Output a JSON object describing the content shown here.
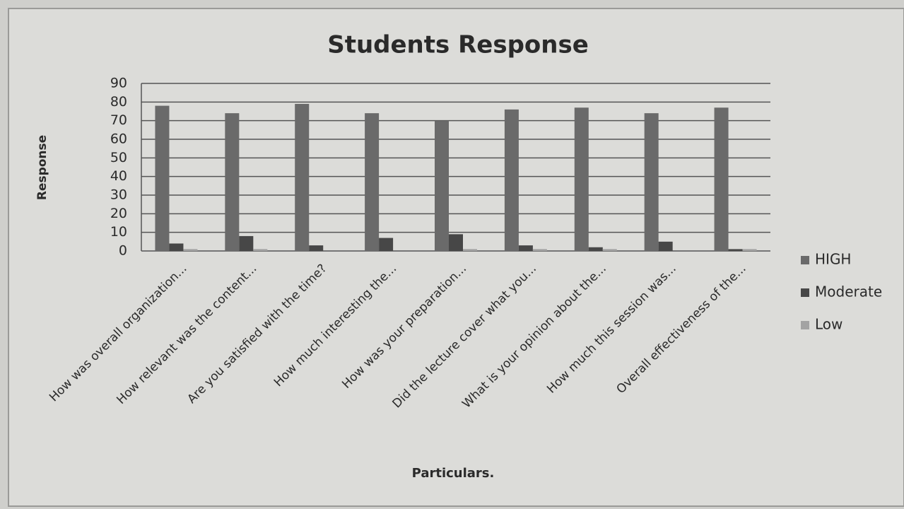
{
  "chart_data": {
    "type": "bar",
    "title": "Students Response",
    "y_label": "Response",
    "x_label": "Particulars.",
    "categories": [
      "How was overall organization...",
      "How relevant was the content...",
      "Are you satisfied with the time?",
      "How much interesting the...",
      "How was your preparation...",
      "Did the lecture cover what you...",
      "What is your opinion about the...",
      "How much this session was...",
      "Overall effectiveness of the..."
    ],
    "series": [
      {
        "name": "HIGH",
        "color": "#6a6a6a",
        "values": [
          78,
          74,
          79,
          74,
          70,
          76,
          77,
          74,
          77
        ]
      },
      {
        "name": "Moderate",
        "color": "#474747",
        "values": [
          4,
          8,
          3,
          7,
          9,
          3,
          2,
          5,
          1
        ]
      },
      {
        "name": "Low",
        "color": "#a3a3a3",
        "values": [
          1,
          1,
          0,
          0,
          1,
          1,
          1,
          0,
          1
        ]
      }
    ],
    "ylim": [
      0,
      90
    ],
    "yticks": [
      0,
      10,
      20,
      30,
      40,
      50,
      60,
      70,
      80,
      90
    ],
    "grid": true,
    "legend": "right"
  }
}
